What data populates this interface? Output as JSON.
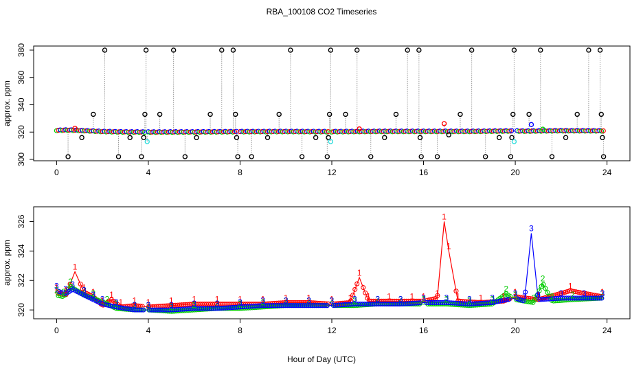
{
  "title": "RBA_100108  CO2 Timeseries",
  "xlabel": "Hour of Day (UTC)",
  "colors": {
    "black": "#000000",
    "red": "#ff0000",
    "green": "#00cc00",
    "blue": "#0000ff",
    "cyan": "#33dddd",
    "gray_line": "#9a9a9a"
  },
  "chart_data": [
    {
      "type": "scatter",
      "ylabel": "approx. ppm",
      "xlim": [
        -1,
        25
      ],
      "ylim": [
        299,
        383
      ],
      "xticks": [
        0,
        4,
        8,
        12,
        16,
        20,
        24
      ],
      "yticks": [
        300,
        320,
        340,
        360,
        380
      ],
      "baseline": [
        [
          0,
          321.3
        ],
        [
          0.5,
          321.5
        ],
        [
          1,
          321.2
        ],
        [
          2,
          320.4
        ],
        [
          3,
          320.1
        ],
        [
          4,
          320.0
        ],
        [
          6,
          320.1
        ],
        [
          8,
          320.3
        ],
        [
          10,
          320.4
        ],
        [
          12,
          320.3
        ],
        [
          13,
          320.4
        ],
        [
          14,
          320.5
        ],
        [
          16,
          320.5
        ],
        [
          18,
          320.5
        ],
        [
          19.8,
          320.8
        ],
        [
          20.5,
          320.7
        ],
        [
          22,
          321.0
        ],
        [
          23.8,
          320.9
        ]
      ],
      "series": [
        {
          "color": "black",
          "points": [
            [
              0.5,
              302
            ],
            [
              1.1,
              316
            ],
            [
              1.6,
              333
            ],
            [
              2.1,
              380
            ],
            [
              2.7,
              302
            ],
            [
              3.2,
              316
            ],
            [
              3.7,
              302
            ],
            [
              3.8,
              316
            ],
            [
              3.85,
              333
            ],
            [
              3.9,
              380
            ],
            [
              4.5,
              333
            ],
            [
              5.1,
              380
            ],
            [
              5.6,
              302
            ],
            [
              6.1,
              316
            ],
            [
              6.7,
              333
            ],
            [
              7.2,
              380
            ],
            [
              7.7,
              380
            ],
            [
              7.8,
              333
            ],
            [
              7.85,
              316
            ],
            [
              7.9,
              302
            ],
            [
              8.5,
              302
            ],
            [
              9.2,
              316
            ],
            [
              9.7,
              333
            ],
            [
              10.2,
              380
            ],
            [
              10.7,
              302
            ],
            [
              11.3,
              316
            ],
            [
              11.8,
              302
            ],
            [
              11.85,
              316
            ],
            [
              11.9,
              333
            ],
            [
              11.95,
              380
            ],
            [
              12.6,
              333
            ],
            [
              13.1,
              380
            ],
            [
              13.7,
              302
            ],
            [
              14.3,
              316
            ],
            [
              14.8,
              333
            ],
            [
              15.3,
              380
            ],
            [
              15.8,
              380
            ],
            [
              15.85,
              316
            ],
            [
              15.9,
              302
            ],
            [
              16.6,
              302
            ],
            [
              17.1,
              318
            ],
            [
              17.6,
              333
            ],
            [
              18.1,
              380
            ],
            [
              18.7,
              302
            ],
            [
              19.3,
              316
            ],
            [
              19.8,
              302
            ],
            [
              19.85,
              316
            ],
            [
              19.9,
              333
            ],
            [
              19.95,
              380
            ],
            [
              20.6,
              333
            ],
            [
              21.1,
              380
            ],
            [
              21.6,
              302
            ],
            [
              22.2,
              316
            ],
            [
              22.7,
              333
            ],
            [
              23.2,
              380
            ],
            [
              23.7,
              380
            ],
            [
              23.75,
              333
            ],
            [
              23.8,
              316
            ],
            [
              23.85,
              302
            ]
          ]
        },
        {
          "color": "cyan",
          "points": [
            [
              3.95,
              313
            ],
            [
              11.95,
              313
            ],
            [
              19.95,
              313
            ]
          ]
        },
        {
          "color": "red",
          "points": [
            [
              0.8,
              322.8
            ],
            [
              13.2,
              322.3
            ],
            [
              16.9,
              326.2
            ]
          ]
        },
        {
          "color": "blue",
          "points": [
            [
              20.7,
              325.5
            ]
          ]
        },
        {
          "color": "green",
          "points": [
            [
              21.2,
              322.1
            ]
          ]
        }
      ]
    },
    {
      "type": "line",
      "ylabel": "approx. ppm",
      "xlim": [
        -1,
        25
      ],
      "ylim": [
        319.4,
        327.0
      ],
      "xticks": [
        0,
        4,
        8,
        12,
        16,
        20,
        24
      ],
      "yticks": [
        320,
        322,
        324,
        326
      ],
      "series": [
        {
          "color": "red",
          "label": "1",
          "points": [
            [
              0.0,
              321.2
            ],
            [
              0.4,
              321.0
            ],
            [
              0.8,
              322.6
            ],
            [
              1.2,
              321.2
            ],
            [
              1.6,
              320.9
            ],
            [
              2.0,
              320.3
            ],
            [
              2.4,
              320.7
            ],
            [
              2.8,
              320.2
            ],
            [
              3.4,
              320.3
            ],
            [
              4.0,
              320.2
            ],
            [
              5.0,
              320.3
            ],
            [
              6.0,
              320.4
            ],
            [
              7.0,
              320.4
            ],
            [
              8.0,
              320.4
            ],
            [
              9.0,
              320.4
            ],
            [
              10.0,
              320.5
            ],
            [
              11.0,
              320.5
            ],
            [
              12.0,
              320.4
            ],
            [
              12.8,
              320.5
            ],
            [
              13.2,
              322.2
            ],
            [
              13.6,
              320.6
            ],
            [
              14.5,
              320.6
            ],
            [
              15.5,
              320.6
            ],
            [
              16.0,
              320.6
            ],
            [
              16.6,
              320.8
            ],
            [
              16.9,
              326.0
            ],
            [
              17.1,
              324.0
            ],
            [
              17.5,
              320.6
            ],
            [
              18.5,
              320.5
            ],
            [
              19.5,
              320.6
            ],
            [
              20.0,
              320.9
            ],
            [
              21.0,
              320.7
            ],
            [
              22.4,
              321.3
            ],
            [
              23.8,
              320.9
            ]
          ]
        },
        {
          "color": "green",
          "label": "2",
          "points": [
            [
              0.0,
              321.0
            ],
            [
              0.3,
              320.9
            ],
            [
              0.6,
              321.6
            ],
            [
              1.2,
              321.0
            ],
            [
              1.6,
              320.8
            ],
            [
              2.2,
              320.4
            ],
            [
              2.6,
              320.1
            ],
            [
              3.4,
              320.0
            ],
            [
              4.0,
              320.0
            ],
            [
              5.0,
              319.9
            ],
            [
              6.0,
              320.0
            ],
            [
              7.0,
              320.1
            ],
            [
              8.0,
              320.1
            ],
            [
              9.0,
              320.2
            ],
            [
              10.0,
              320.3
            ],
            [
              11.0,
              320.3
            ],
            [
              12.0,
              320.3
            ],
            [
              13.0,
              320.3
            ],
            [
              14.0,
              320.4
            ],
            [
              15.0,
              320.4
            ],
            [
              16.0,
              320.4
            ],
            [
              17.0,
              320.4
            ],
            [
              18.0,
              320.3
            ],
            [
              19.0,
              320.4
            ],
            [
              19.6,
              321.1
            ],
            [
              20.0,
              320.7
            ],
            [
              20.8,
              320.5
            ],
            [
              21.2,
              321.8
            ],
            [
              21.6,
              320.6
            ],
            [
              22.5,
              320.7
            ],
            [
              23.8,
              320.8
            ]
          ]
        },
        {
          "color": "blue",
          "label": "3",
          "points": [
            [
              0.0,
              321.3
            ],
            [
              0.4,
              321.1
            ],
            [
              0.7,
              321.4
            ],
            [
              1.2,
              321.0
            ],
            [
              1.6,
              320.7
            ],
            [
              2.0,
              320.4
            ],
            [
              2.6,
              320.2
            ],
            [
              3.4,
              320.0
            ],
            [
              4.0,
              320.0
            ],
            [
              5.0,
              320.0
            ],
            [
              6.0,
              320.1
            ],
            [
              7.0,
              320.1
            ],
            [
              8.0,
              320.2
            ],
            [
              9.0,
              320.3
            ],
            [
              10.0,
              320.3
            ],
            [
              11.0,
              320.3
            ],
            [
              12.0,
              320.3
            ],
            [
              13.0,
              320.4
            ],
            [
              14.0,
              320.4
            ],
            [
              15.0,
              320.4
            ],
            [
              16.0,
              320.5
            ],
            [
              17.0,
              320.5
            ],
            [
              18.0,
              320.4
            ],
            [
              19.0,
              320.5
            ],
            [
              20.0,
              320.8
            ],
            [
              20.4,
              320.6
            ],
            [
              20.7,
              325.2
            ],
            [
              21.0,
              320.7
            ],
            [
              22.0,
              320.8
            ],
            [
              23.0,
              320.8
            ],
            [
              23.8,
              320.8
            ]
          ]
        }
      ]
    }
  ]
}
